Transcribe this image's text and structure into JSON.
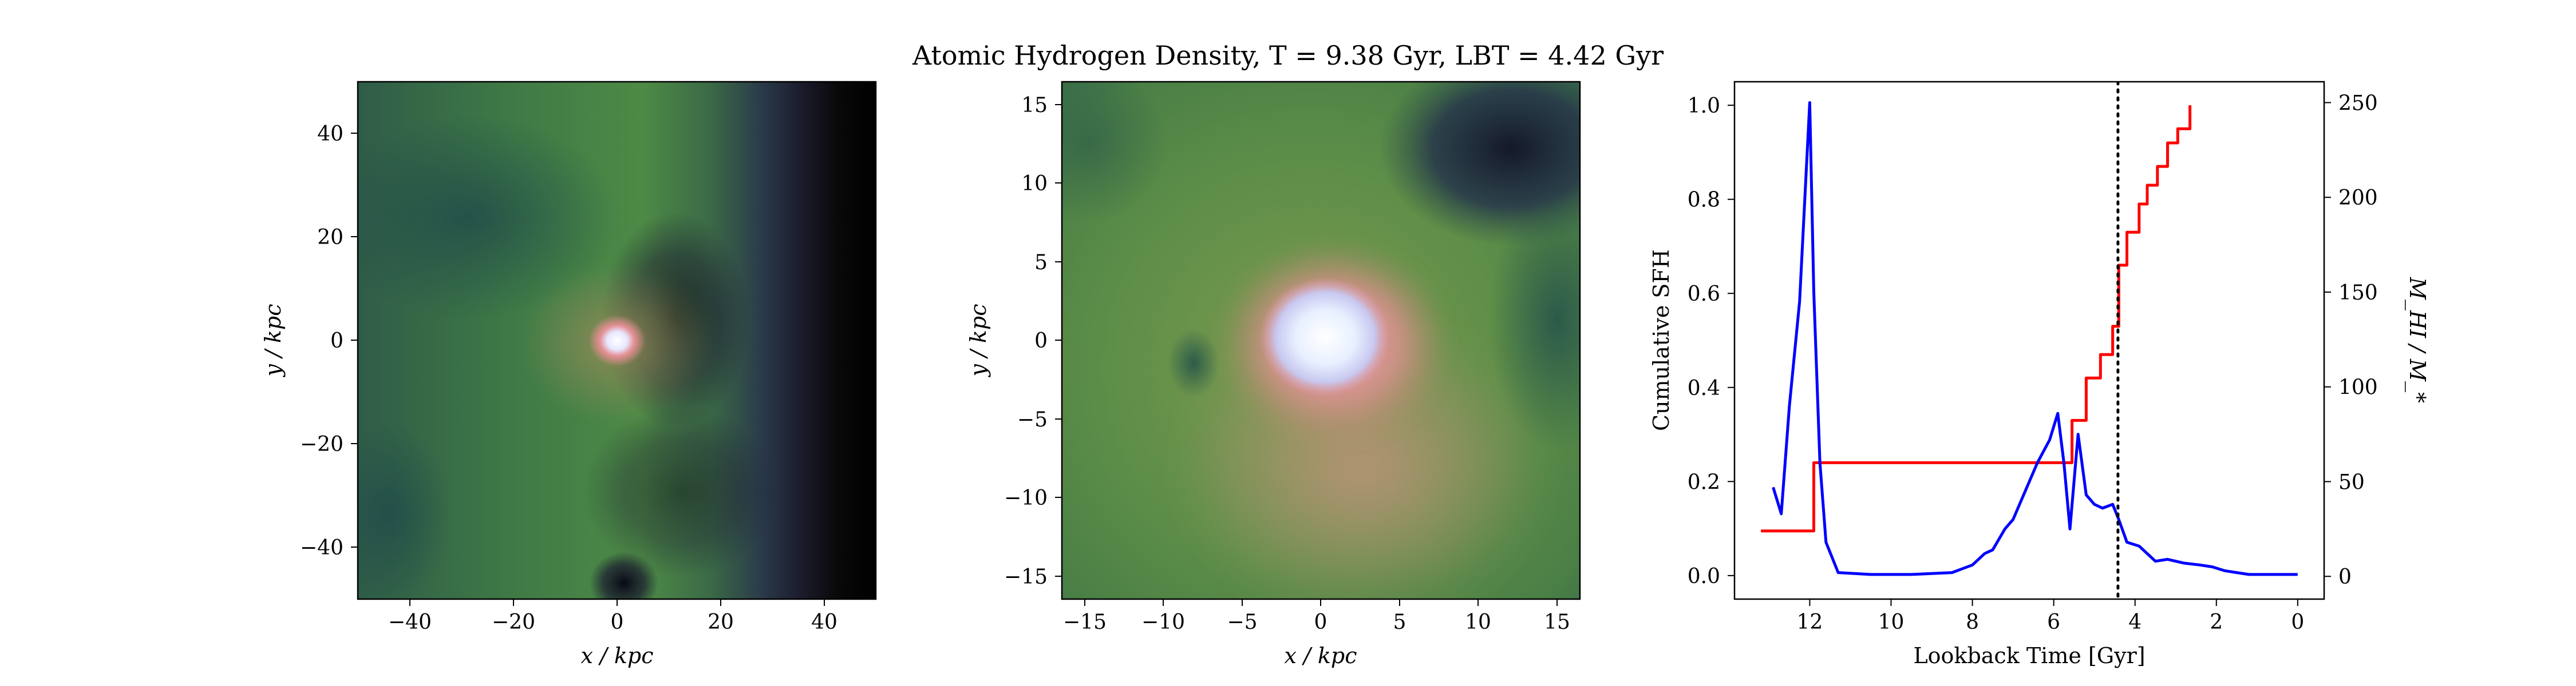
{
  "figure": {
    "title": "Atomic Hydrogen Density, T = 9.38 Gyr, LBT = 4.42 Gyr",
    "colors": {
      "cmap_dark": "#000000",
      "cmap_green": "#4b8c46",
      "cmap_pink": "#e58f94",
      "cmap_white": "#ffffff"
    }
  },
  "panels": {
    "left": {
      "xlabel": "x / kpc",
      "ylabel": "y / kpc",
      "xticks": [
        "−40",
        "−20",
        "0",
        "20",
        "40"
      ],
      "yticks": [
        "40",
        "20",
        "0",
        "−20",
        "−40"
      ]
    },
    "middle": {
      "xlabel": "x / kpc",
      "ylabel": "y / kpc",
      "xticks": [
        "−15",
        "−10",
        "−5",
        "0",
        "5",
        "10",
        "15"
      ],
      "yticks": [
        "15",
        "10",
        "5",
        "0",
        "−5",
        "−10",
        "−15"
      ]
    },
    "right": {
      "xlabel": "Lookback Time [Gyr]",
      "ylabel_left": "Cumulative SFH",
      "ylabel_right": "M_HI / M_*",
      "xticks": [
        "12",
        "10",
        "8",
        "6",
        "4",
        "2",
        "0"
      ],
      "yticks_left": [
        "1.0",
        "0.8",
        "0.6",
        "0.4",
        "0.2",
        "0.0"
      ],
      "yticks_right": [
        "250",
        "200",
        "150",
        "100",
        "50",
        "0"
      ]
    }
  },
  "chart_data": [
    {
      "type": "heatmap",
      "title": "",
      "xlabel": "x / kpc",
      "ylabel": "y / kpc",
      "xlim": [
        -50,
        50
      ],
      "ylim": [
        -50,
        50
      ],
      "colormap": [
        "#000000",
        "#1e2b47",
        "#27524a",
        "#4b8c46",
        "#7f9a52",
        "#e58f94",
        "#ffffff"
      ]
    },
    {
      "type": "heatmap",
      "title": "",
      "xlabel": "x / kpc",
      "ylabel": "y / kpc",
      "xlim": [
        -16.5,
        16.5
      ],
      "ylim": [
        -16.5,
        16.5
      ],
      "colormap": [
        "#000000",
        "#1e2b47",
        "#27524a",
        "#4b8c46",
        "#7f9a52",
        "#e58f94",
        "#ffffff"
      ]
    },
    {
      "type": "line",
      "title": "",
      "xlabel": "Lookback Time [Gyr]",
      "ylabel": "Cumulative SFH",
      "ylabel_right": "M_HI / M_*",
      "xlim": [
        13.85,
        -0.65
      ],
      "ylim": [
        -0.05,
        1.05
      ],
      "ylim_right": [
        -12,
        261
      ],
      "grid": false,
      "vline": {
        "x": 4.42,
        "style": "dotted",
        "color": "#000000"
      },
      "series": [
        {
          "axis": "left",
          "color": "#ff0000",
          "x": [
            13.2,
            12.0,
            11.9,
            5.8,
            5.55,
            5.2,
            4.85,
            4.55,
            4.4,
            4.2,
            3.9,
            3.7,
            3.45,
            3.2,
            2.95,
            2.65
          ],
          "y": [
            0.095,
            0.095,
            0.24,
            0.24,
            0.33,
            0.42,
            0.47,
            0.53,
            0.66,
            0.73,
            0.79,
            0.83,
            0.87,
            0.92,
            0.95,
            1.0
          ],
          "step": "post"
        },
        {
          "axis": "right",
          "color": "#0000ff",
          "x": [
            12.9,
            12.7,
            12.5,
            12.25,
            12.0,
            11.9,
            11.75,
            11.6,
            11.3,
            10.5,
            9.5,
            8.5,
            8.0,
            7.7,
            7.5,
            7.2,
            7.0,
            6.7,
            6.4,
            6.1,
            5.9,
            5.75,
            5.6,
            5.4,
            5.2,
            5.0,
            4.8,
            4.55,
            4.4,
            4.2,
            3.9,
            3.5,
            3.2,
            2.8,
            2.4,
            2.1,
            1.8,
            1.5,
            1.2,
            0.8,
            0.4,
            0.0
          ],
          "y": [
            47,
            33,
            90,
            145,
            250,
            150,
            60,
            18,
            2,
            1,
            1,
            2,
            6,
            12,
            14,
            25,
            30,
            45,
            60,
            72,
            86,
            60,
            25,
            75,
            43,
            38,
            36,
            38,
            30,
            18,
            16,
            8,
            9,
            7,
            6,
            5,
            3,
            2,
            1,
            1,
            1,
            1
          ]
        }
      ]
    }
  ]
}
